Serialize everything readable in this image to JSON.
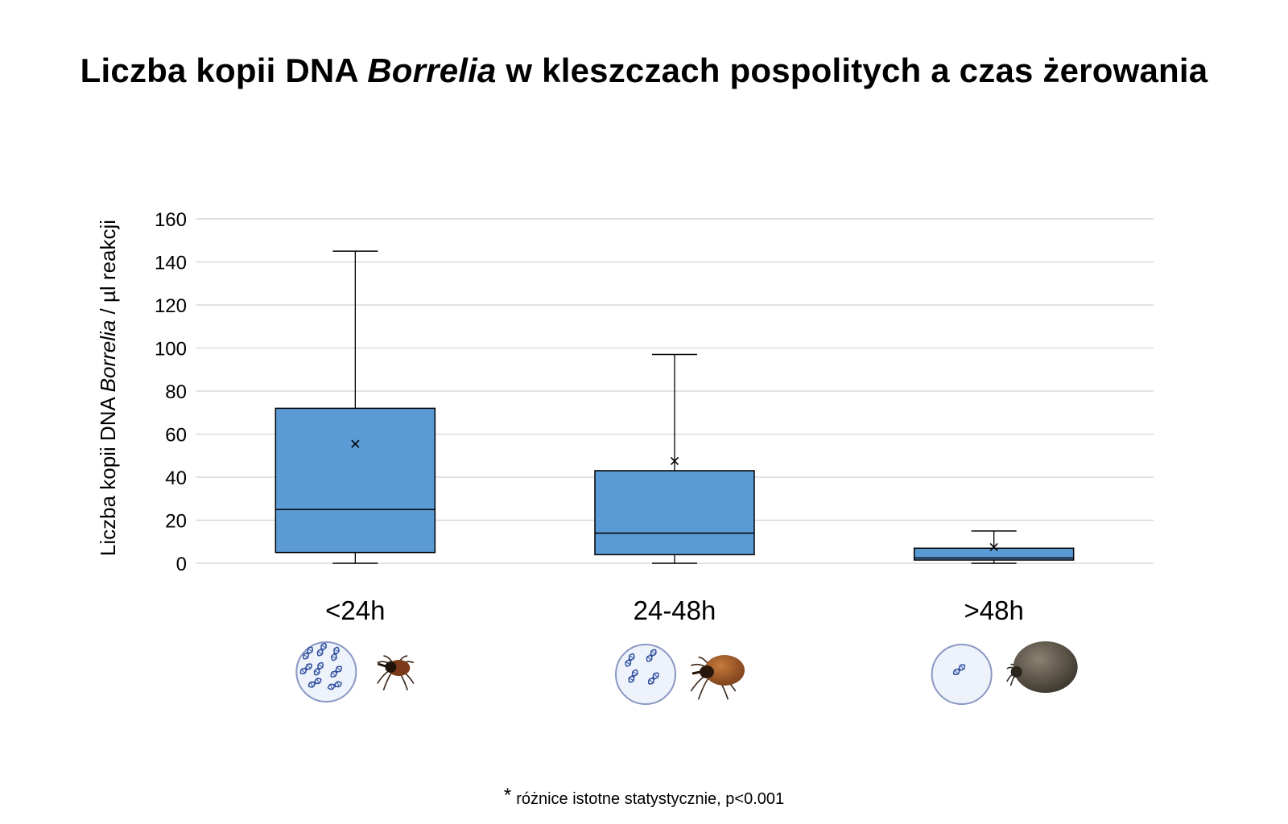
{
  "title": {
    "part1": "Liczba kopii DNA ",
    "italic": "Borrelia",
    "part2": " w kleszczach pospolitych a czas żerowania"
  },
  "footnote": {
    "marker": "*",
    "text": "różnice istotne statystycznie, p<0.001"
  },
  "colors": {
    "box_fill": "#5b9bd5",
    "stroke": "#000000",
    "grid": "#d9d9d9",
    "dna": "#2f4f9f",
    "circle_fill": "#eef3fb",
    "circle_stroke": "#8a97c4"
  },
  "chart_data": {
    "type": "box",
    "ylabel_part1": "Liczba kopii DNA ",
    "ylabel_italic": "Borrelia",
    "ylabel_part2": " / µl reakcji",
    "ylim": [
      0,
      160
    ],
    "yticks": [
      0,
      20,
      40,
      60,
      80,
      100,
      120,
      140,
      160
    ],
    "grid": true,
    "categories": [
      "<24h",
      "24-48h",
      ">48h"
    ],
    "boxes": [
      {
        "category": "<24h",
        "min": 0,
        "q1": 5,
        "median": 25,
        "q3": 72,
        "max": 145,
        "mean": 55.5
      },
      {
        "category": "24-48h",
        "min": 0,
        "q1": 4,
        "median": 14,
        "q3": 43,
        "max": 97,
        "mean": 47.5
      },
      {
        "category": ">48h",
        "min": 0,
        "q1": 1.5,
        "median": 2.5,
        "q3": 7,
        "max": 15,
        "mean": 7.5
      }
    ],
    "icons": [
      {
        "category": "<24h",
        "dna_count": 8,
        "tick": "small-unfed-tick-icon"
      },
      {
        "category": "24-48h",
        "dna_count": 4,
        "tick": "partially-fed-tick-icon"
      },
      {
        "category": ">48h",
        "dna_count": 1,
        "tick": "engorged-tick-icon"
      }
    ]
  }
}
